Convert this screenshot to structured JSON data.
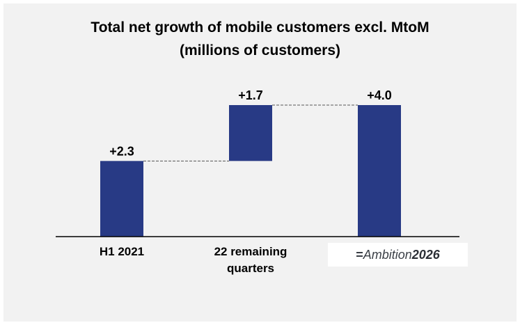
{
  "chart_data": {
    "type": "waterfall",
    "title_lines": [
      "Total net growth of mobile customers excl. MtoM",
      "(millions of customers)"
    ],
    "categories": [
      "H1 2021",
      "22 remaining quarters",
      "Ambition2026"
    ],
    "category_lines": [
      [
        "H1 2021"
      ],
      [
        "22 remaining",
        "quarters"
      ]
    ],
    "values": [
      2.3,
      1.7,
      4.0
    ],
    "bases": [
      0,
      2.3,
      0
    ],
    "data_labels": [
      "+2.3",
      "+1.7",
      "+4.0"
    ],
    "bar_color": "#283a85",
    "ylim": [
      0,
      4.0
    ],
    "grid": false,
    "connectors": true
  },
  "logo": {
    "mark": "=",
    "word": "Ambition",
    "year": "2026"
  }
}
